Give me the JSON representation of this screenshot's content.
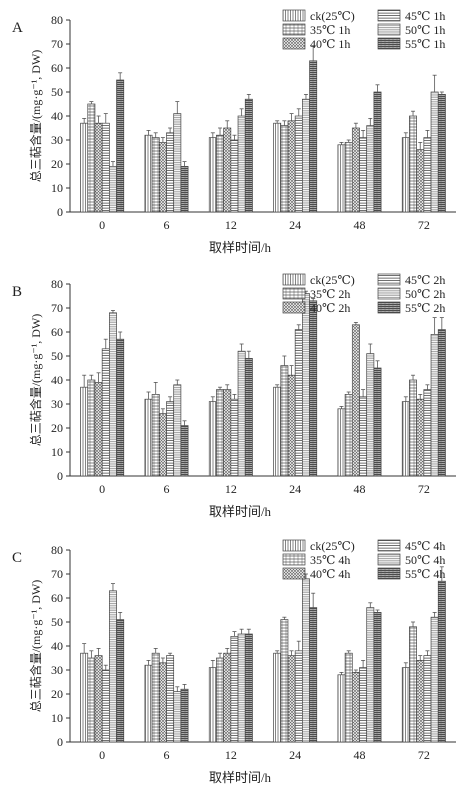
{
  "figure": {
    "y_label": "总三萜含量/(mg·g-1, DW)",
    "x_label": "取样时间/h"
  },
  "chart_data": [
    {
      "type": "bar",
      "title": "A",
      "xlabel": "取样时间/h",
      "ylabel": "总三萜含量/(mg·g⁻¹, DW)",
      "ylim": [
        0,
        80
      ],
      "y_ticks": [
        0,
        10,
        20,
        30,
        40,
        50,
        60,
        70,
        80
      ],
      "categories": [
        "0",
        "6",
        "12",
        "24",
        "48",
        "72"
      ],
      "legend_position": "top-right",
      "series": [
        {
          "name": "ck(25℃)",
          "values": [
            37,
            32,
            31,
            37,
            28,
            31
          ],
          "errors": [
            2,
            2,
            2,
            1,
            1,
            2
          ]
        },
        {
          "name": "35℃ 1h",
          "values": [
            45,
            31,
            32,
            36,
            29,
            40
          ],
          "errors": [
            1,
            2,
            3,
            2,
            1,
            2
          ]
        },
        {
          "name": "40℃ 1h",
          "values": [
            37,
            29,
            35,
            38,
            35,
            26
          ],
          "errors": [
            3,
            2,
            3,
            3,
            2,
            3
          ]
        },
        {
          "name": "45℃ 1h",
          "values": [
            37,
            33,
            30,
            40,
            31,
            31
          ],
          "errors": [
            4,
            2,
            2,
            3,
            3,
            3
          ]
        },
        {
          "name": "50℃ 1h",
          "values": [
            19,
            41,
            40,
            47,
            36,
            50
          ],
          "errors": [
            2,
            5,
            3,
            2,
            3,
            7
          ]
        },
        {
          "name": "55℃ 1h",
          "values": [
            55,
            19,
            47,
            63,
            50,
            49
          ],
          "errors": [
            3,
            2,
            2,
            6,
            3,
            1
          ]
        }
      ]
    },
    {
      "type": "bar",
      "title": "B",
      "xlabel": "取样时间/h",
      "ylabel": "总三萜含量/(mg·g⁻¹, DW)",
      "ylim": [
        0,
        80
      ],
      "y_ticks": [
        0,
        10,
        20,
        30,
        40,
        50,
        60,
        70,
        80
      ],
      "categories": [
        "0",
        "6",
        "12",
        "24",
        "48",
        "72"
      ],
      "legend_position": "top-right",
      "series": [
        {
          "name": "ck(25℃)",
          "values": [
            37,
            32,
            31,
            37,
            28,
            31
          ],
          "errors": [
            5,
            3,
            2,
            1,
            1,
            2
          ]
        },
        {
          "name": "35℃ 2h",
          "values": [
            40,
            34,
            36,
            46,
            34,
            40
          ],
          "errors": [
            2,
            5,
            1,
            4,
            1,
            2
          ]
        },
        {
          "name": "40℃ 2h",
          "values": [
            39,
            26,
            36,
            42,
            63,
            32
          ],
          "errors": [
            4,
            2,
            2,
            4,
            1,
            2
          ]
        },
        {
          "name": "45℃ 2h",
          "values": [
            53,
            31,
            32,
            61,
            33,
            36
          ],
          "errors": [
            4,
            2,
            2,
            2,
            3,
            2
          ]
        },
        {
          "name": "50℃ 2h",
          "values": [
            68,
            38,
            52,
            76,
            51,
            59
          ],
          "errors": [
            1,
            2,
            3,
            1,
            4,
            7
          ]
        },
        {
          "name": "55℃ 2h",
          "values": [
            57,
            21,
            49,
            73,
            45,
            61
          ],
          "errors": [
            3,
            2,
            3,
            1,
            3,
            5
          ]
        }
      ]
    },
    {
      "type": "bar",
      "title": "C",
      "xlabel": "取样时间/h",
      "ylabel": "总三萜含量/(mg·g⁻¹, DW)",
      "ylim": [
        0,
        80
      ],
      "y_ticks": [
        0,
        10,
        20,
        30,
        40,
        50,
        60,
        70,
        80
      ],
      "categories": [
        "0",
        "6",
        "12",
        "24",
        "48",
        "72"
      ],
      "legend_position": "top-right",
      "series": [
        {
          "name": "ck(25℃)",
          "values": [
            37,
            32,
            31,
            37,
            28,
            31
          ],
          "errors": [
            4,
            2,
            3,
            1,
            1,
            2
          ]
        },
        {
          "name": "35℃ 4h",
          "values": [
            35,
            37,
            35,
            51,
            37,
            48
          ],
          "errors": [
            3,
            2,
            2,
            1,
            1,
            2
          ]
        },
        {
          "name": "40℃ 4h",
          "values": [
            36,
            33,
            37,
            36,
            29,
            34
          ],
          "errors": [
            3,
            2,
            2,
            2,
            1,
            2
          ]
        },
        {
          "name": "45℃ 4h",
          "values": [
            30,
            36,
            44,
            38,
            31,
            36
          ],
          "errors": [
            2,
            1,
            2,
            4,
            3,
            2
          ]
        },
        {
          "name": "50℃ 4h",
          "values": [
            63,
            21,
            45,
            68,
            56,
            52
          ],
          "errors": [
            3,
            2,
            2,
            2,
            2,
            2
          ]
        },
        {
          "name": "55℃ 4h",
          "values": [
            51,
            22,
            45,
            56,
            54,
            67
          ],
          "errors": [
            3,
            2,
            2,
            6,
            1,
            6
          ]
        }
      ]
    }
  ]
}
